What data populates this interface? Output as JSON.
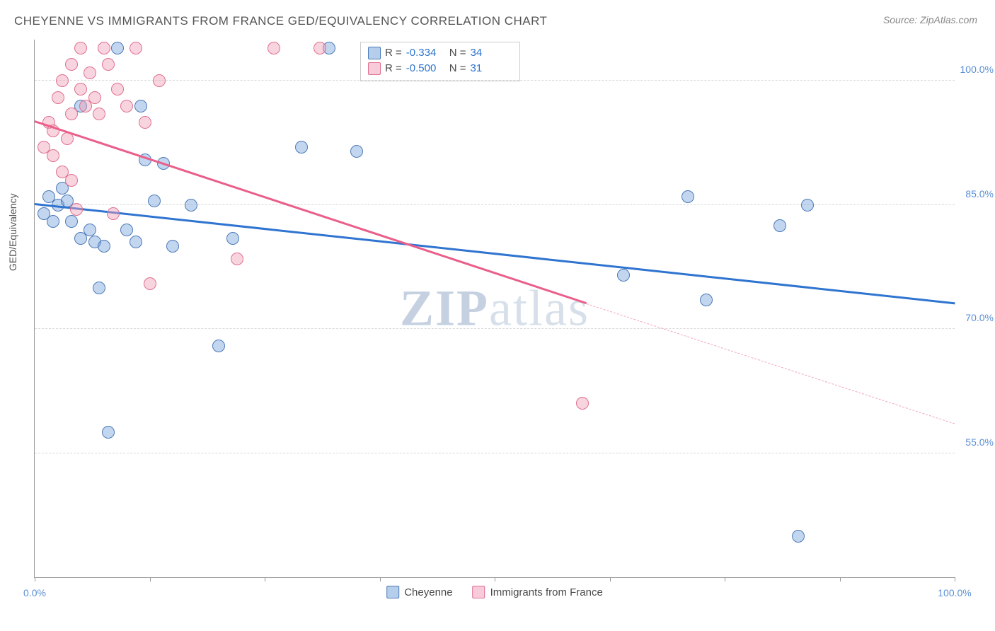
{
  "title": "CHEYENNE VS IMMIGRANTS FROM FRANCE GED/EQUIVALENCY CORRELATION CHART",
  "source": "Source: ZipAtlas.com",
  "yaxis_label": "GED/Equivalency",
  "watermark_a": "ZIP",
  "watermark_b": "atlas",
  "chart": {
    "type": "scatter",
    "xlim": [
      0,
      100
    ],
    "ylim": [
      40,
      105
    ],
    "background_color": "#ffffff",
    "grid_color": "#d8d8d8",
    "yticks": [
      {
        "v": 55,
        "label": "55.0%"
      },
      {
        "v": 70,
        "label": "70.0%"
      },
      {
        "v": 85,
        "label": "85.0%"
      },
      {
        "v": 100,
        "label": "100.0%"
      }
    ],
    "xticks": [
      0,
      12.5,
      25,
      37.5,
      50,
      62.5,
      75,
      87.5,
      100
    ],
    "xtick_labels": {
      "0": "0.0%",
      "100": "100.0%"
    },
    "marker_size": 16,
    "series": [
      {
        "name": "Cheyenne",
        "color_fill": "rgba(120,165,220,0.45)",
        "color_stroke": "#4d7ab8",
        "points": [
          [
            1,
            84
          ],
          [
            1.5,
            86
          ],
          [
            2,
            83
          ],
          [
            2.5,
            85
          ],
          [
            3,
            87
          ],
          [
            3.5,
            85.5
          ],
          [
            4,
            83
          ],
          [
            5,
            97
          ],
          [
            5,
            81
          ],
          [
            6,
            82
          ],
          [
            6.5,
            80.5
          ],
          [
            7,
            75
          ],
          [
            7.5,
            80
          ],
          [
            8,
            57.5
          ],
          [
            9,
            104
          ],
          [
            10,
            82
          ],
          [
            11,
            80.5
          ],
          [
            11.5,
            97
          ],
          [
            12,
            90.5
          ],
          [
            13,
            85.5
          ],
          [
            14,
            90
          ],
          [
            15,
            80
          ],
          [
            17,
            85
          ],
          [
            20,
            68
          ],
          [
            21.5,
            81
          ],
          [
            29,
            92
          ],
          [
            32,
            104
          ],
          [
            35,
            91.5
          ],
          [
            64,
            76.5
          ],
          [
            71,
            86
          ],
          [
            73,
            73.5
          ],
          [
            81,
            82.5
          ],
          [
            84,
            85
          ],
          [
            83,
            45
          ]
        ],
        "trend": {
          "x1": 0,
          "y1": 85,
          "x2": 100,
          "y2": 73,
          "color": "#2f74d0"
        }
      },
      {
        "name": "Immigrants from France",
        "color_fill": "rgba(240,160,185,0.45)",
        "color_stroke": "#e0708f",
        "points": [
          [
            1,
            92
          ],
          [
            1.5,
            95
          ],
          [
            2,
            94
          ],
          [
            2,
            91
          ],
          [
            2.5,
            98
          ],
          [
            3,
            100
          ],
          [
            3,
            89
          ],
          [
            3.5,
            93
          ],
          [
            4,
            96
          ],
          [
            4,
            88
          ],
          [
            4,
            102
          ],
          [
            4.5,
            84.5
          ],
          [
            5,
            99
          ],
          [
            5,
            104
          ],
          [
            5.5,
            97
          ],
          [
            6,
            101
          ],
          [
            6.5,
            98
          ],
          [
            7,
            96
          ],
          [
            7.5,
            104
          ],
          [
            8,
            102
          ],
          [
            8.5,
            84
          ],
          [
            9,
            99
          ],
          [
            10,
            97
          ],
          [
            11,
            104
          ],
          [
            12,
            95
          ],
          [
            12.5,
            75.5
          ],
          [
            13.5,
            100
          ],
          [
            22,
            78.5
          ],
          [
            26,
            104
          ],
          [
            31,
            104
          ],
          [
            59.5,
            61
          ]
        ],
        "trend_solid": {
          "x1": 0,
          "y1": 95,
          "x2": 60,
          "y2": 73,
          "color": "#ea5f8a"
        },
        "trend_dashed": {
          "x1": 60,
          "y1": 73,
          "x2": 100,
          "y2": 58.5,
          "color": "#f2a6bd"
        }
      }
    ]
  },
  "stats": [
    {
      "swatch": "blue",
      "R": "-0.334",
      "N": "34"
    },
    {
      "swatch": "pink",
      "R": "-0.500",
      "N": "31"
    }
  ],
  "stats_labels": {
    "R": "R =",
    "N": "N ="
  },
  "legend": [
    {
      "swatch": "blue",
      "label": "Cheyenne"
    },
    {
      "swatch": "pink",
      "label": "Immigrants from France"
    }
  ]
}
